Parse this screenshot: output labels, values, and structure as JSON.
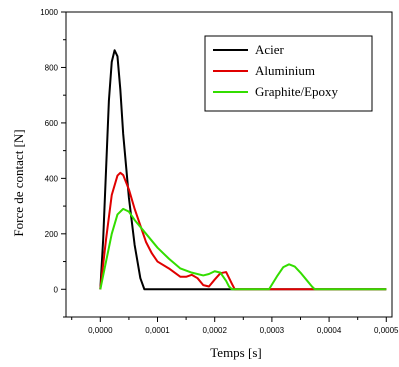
{
  "chart_data": {
    "type": "line",
    "xlabel": "Temps [s]",
    "ylabel": "Force de contact [N]",
    "xlim": [
      -6e-05,
      0.00051
    ],
    "ylim": [
      -100,
      1000
    ],
    "x_ticks": [
      0,
      0.0001,
      0.0002,
      0.0003,
      0.0004,
      0.0005
    ],
    "x_tick_labels": [
      "0,0000",
      "0,0001",
      "0,0002",
      "0,0003",
      "0,0004",
      "0,0005"
    ],
    "y_ticks": [
      0,
      200,
      400,
      600,
      800,
      1000
    ],
    "y_tick_labels": [
      "0",
      "200",
      "400",
      "600",
      "800",
      "1000"
    ],
    "legend_position": "top-right",
    "grid": false,
    "series": [
      {
        "name": "Acier",
        "color": "#000000",
        "points": [
          [
            0,
            0
          ],
          [
            5e-06,
            180
          ],
          [
            1e-05,
            430
          ],
          [
            1.5e-05,
            680
          ],
          [
            2e-05,
            820
          ],
          [
            2.5e-05,
            862
          ],
          [
            3e-05,
            840
          ],
          [
            3.5e-05,
            720
          ],
          [
            4e-05,
            560
          ],
          [
            5e-05,
            330
          ],
          [
            6e-05,
            160
          ],
          [
            7e-05,
            40
          ],
          [
            7.7e-05,
            0
          ],
          [
            0.0005,
            0
          ]
        ]
      },
      {
        "name": "Aluminium",
        "color": "#e00000",
        "points": [
          [
            0,
            0
          ],
          [
            1e-05,
            180
          ],
          [
            2e-05,
            340
          ],
          [
            3e-05,
            410
          ],
          [
            3.5e-05,
            420
          ],
          [
            4e-05,
            412
          ],
          [
            5e-05,
            360
          ],
          [
            6e-05,
            290
          ],
          [
            7e-05,
            230
          ],
          [
            8e-05,
            170
          ],
          [
            9e-05,
            130
          ],
          [
            0.0001,
            100
          ],
          [
            0.00012,
            75
          ],
          [
            0.00014,
            45
          ],
          [
            0.00015,
            45
          ],
          [
            0.00016,
            52
          ],
          [
            0.00017,
            40
          ],
          [
            0.00018,
            15
          ],
          [
            0.00019,
            10
          ],
          [
            0.0002,
            35
          ],
          [
            0.00021,
            58
          ],
          [
            0.00022,
            62
          ],
          [
            0.00023,
            20
          ],
          [
            0.000235,
            0
          ],
          [
            0.000375,
            0
          ],
          [
            0.0005,
            0
          ]
        ]
      },
      {
        "name": "Graphite/Epoxy",
        "color": "#33dd00",
        "points": [
          [
            0,
            0
          ],
          [
            1e-05,
            100
          ],
          [
            2e-05,
            200
          ],
          [
            3e-05,
            270
          ],
          [
            4e-05,
            290
          ],
          [
            5e-05,
            280
          ],
          [
            6e-05,
            250
          ],
          [
            8e-05,
            200
          ],
          [
            0.0001,
            150
          ],
          [
            0.00012,
            110
          ],
          [
            0.00014,
            75
          ],
          [
            0.00016,
            60
          ],
          [
            0.00018,
            50
          ],
          [
            0.00019,
            55
          ],
          [
            0.0002,
            65
          ],
          [
            0.00021,
            60
          ],
          [
            0.00022,
            30
          ],
          [
            0.000225,
            10
          ],
          [
            0.00023,
            0
          ],
          [
            0.000295,
            0
          ],
          [
            0.00031,
            50
          ],
          [
            0.00032,
            80
          ],
          [
            0.00033,
            90
          ],
          [
            0.00034,
            82
          ],
          [
            0.00035,
            60
          ],
          [
            0.00036,
            35
          ],
          [
            0.00037,
            10
          ],
          [
            0.000375,
            0
          ],
          [
            0.0005,
            0
          ]
        ]
      }
    ]
  }
}
